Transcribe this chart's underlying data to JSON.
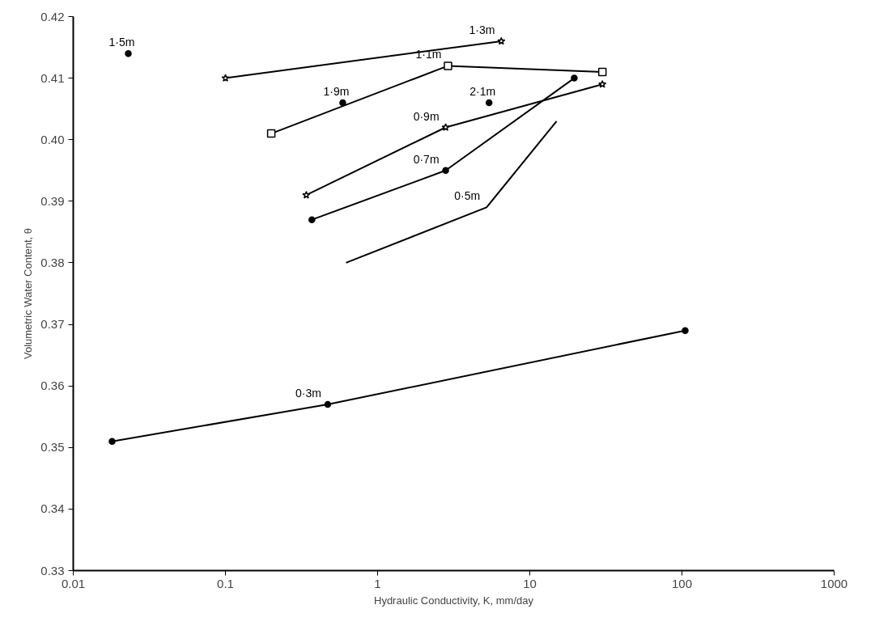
{
  "chart_data": {
    "type": "line",
    "xlabel": "Hydraulic Conductivity, K, mm/day",
    "ylabel": "Volumetric Water Content, θ",
    "log": "x",
    "grid": false,
    "xlim": [
      0.01,
      1000
    ],
    "xticks": [
      0.01,
      0.1,
      1,
      10,
      100,
      1000
    ],
    "ylim": [
      0.33,
      0.42
    ],
    "yticks": [
      0.33,
      0.34,
      0.35,
      0.36,
      0.37,
      0.38,
      0.39,
      {
        "value": 0.4,
        "label": "0.40"
      },
      0.41,
      0.42
    ],
    "series": [
      {
        "name": "0·3m",
        "color": "#000000",
        "marker": "circle",
        "x": [
          0.018,
          0.47,
          105
        ],
        "values": [
          0.351,
          0.357,
          0.369
        ]
      },
      {
        "name": "0·5m",
        "color": "#000000",
        "marker": "none",
        "x": [
          0.62,
          5.2,
          15
        ],
        "values": [
          0.38,
          0.389,
          0.403
        ]
      },
      {
        "name": "0·7m",
        "color": "#000000",
        "marker": "circle",
        "x": [
          0.37,
          2.8,
          19.6
        ],
        "values": [
          0.387,
          0.395,
          0.41
        ]
      },
      {
        "name": "0·9m",
        "color": "#000000",
        "marker": "star",
        "x": [
          0.34,
          2.8,
          30
        ],
        "values": [
          0.391,
          0.402,
          0.409
        ]
      },
      {
        "name": "1·1m",
        "color": "#000000",
        "marker": "square",
        "x": [
          0.2,
          2.9,
          30
        ],
        "values": [
          0.401,
          0.412,
          0.411
        ]
      },
      {
        "name": "1·3m",
        "color": "#000000",
        "marker": "star",
        "x": [
          0.1,
          6.5
        ],
        "values": [
          0.41,
          0.416
        ]
      },
      {
        "name": "1·5m",
        "color": "#000000",
        "marker": "circle",
        "type": "scatter",
        "x": [
          0.023
        ],
        "values": [
          0.414
        ]
      },
      {
        "name": "1·9m",
        "color": "#000000",
        "marker": "circle",
        "type": "scatter",
        "x": [
          0.59
        ],
        "values": [
          0.406
        ]
      },
      {
        "name": "2·1m",
        "color": "#000000",
        "marker": "circle",
        "type": "scatter",
        "x": [
          5.4
        ],
        "values": [
          0.406
        ]
      }
    ]
  }
}
